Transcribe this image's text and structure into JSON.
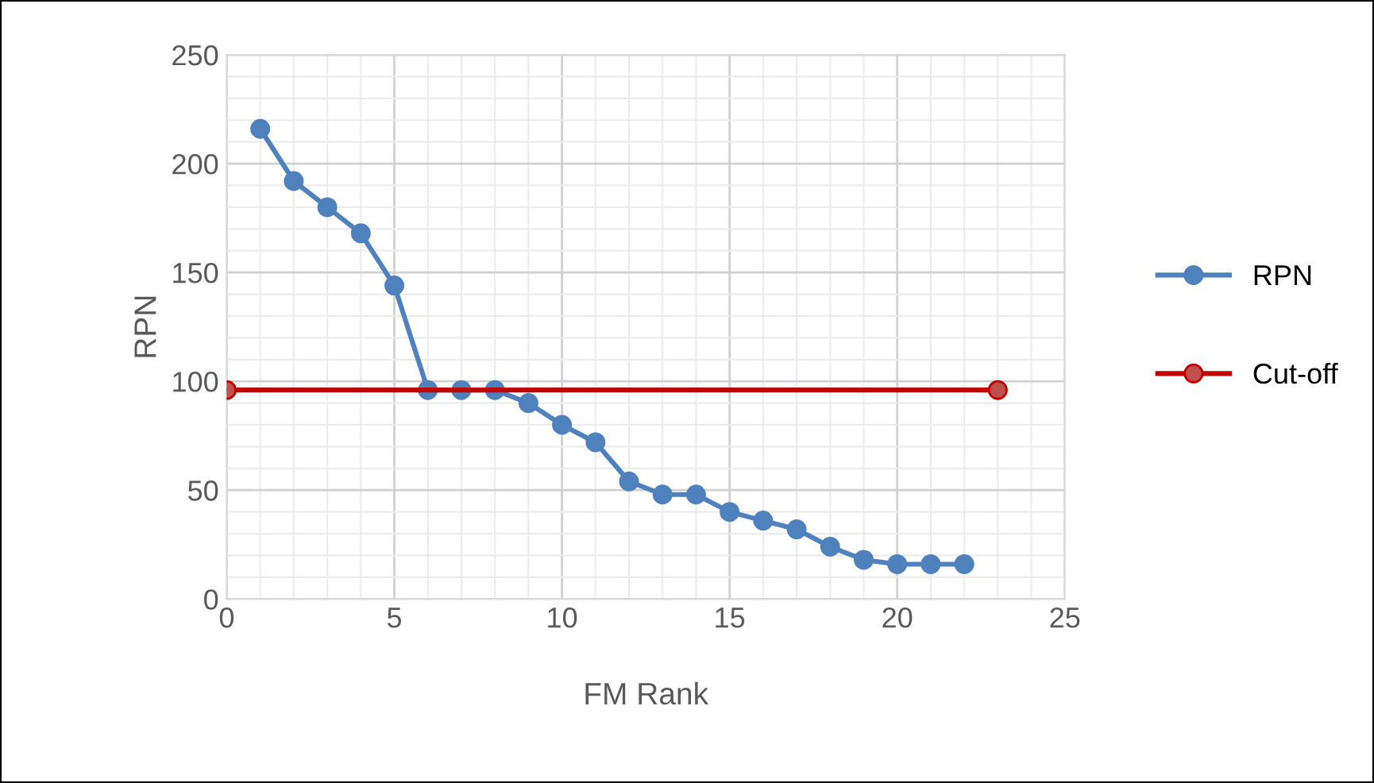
{
  "chart_data": {
    "type": "line",
    "xlabel": "FM Rank",
    "ylabel": "RPN",
    "xlim": [
      0,
      25
    ],
    "xticks": [
      0,
      5,
      10,
      15,
      20,
      25
    ],
    "ylim": [
      0,
      250
    ],
    "yticks": [
      0,
      50,
      100,
      150,
      200,
      250
    ],
    "grid": true,
    "legend": "right",
    "marker": "circle",
    "line_style": "solid",
    "series": [
      {
        "name": "RPN",
        "color": "#4f81bd",
        "x": [
          1,
          2,
          3,
          4,
          5,
          6,
          7,
          8,
          9,
          10,
          11,
          12,
          13,
          14,
          15,
          16,
          17,
          18,
          19,
          20,
          21,
          22
        ],
        "values": [
          216,
          192,
          180,
          168,
          144,
          96,
          96,
          96,
          90,
          80,
          72,
          54,
          48,
          48,
          40,
          36,
          32,
          24,
          18,
          16,
          16,
          16
        ]
      },
      {
        "name": "Cut-off",
        "color": "#c00000",
        "x": [
          0,
          23
        ],
        "values": [
          96,
          96
        ]
      }
    ]
  }
}
